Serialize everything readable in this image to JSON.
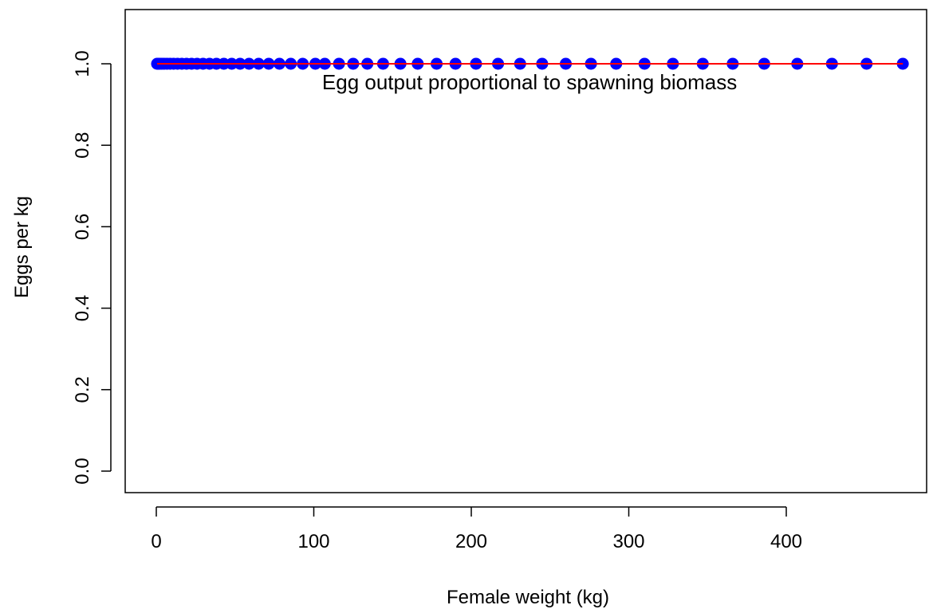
{
  "chart_data": {
    "type": "scatter",
    "title": "",
    "xlabel": "Female weight (kg)",
    "ylabel": "Eggs per kg",
    "xlim": [
      0,
      475
    ],
    "ylim": [
      0,
      1.0
    ],
    "x_ticks": [
      0,
      100,
      200,
      300,
      400
    ],
    "y_ticks": [
      0.0,
      0.2,
      0.4,
      0.6,
      0.8,
      1.0
    ],
    "x_tick_labels": [
      "0",
      "100",
      "200",
      "300",
      "400"
    ],
    "y_tick_labels": [
      "0.0",
      "0.2",
      "0.4",
      "0.6",
      "0.8",
      "1.0"
    ],
    "grid": false,
    "annotation": {
      "text": "Egg output proportional to spawning biomass",
      "x": 237,
      "y": 0.955
    },
    "series": [
      {
        "type": "scatter",
        "color": "#0000ff",
        "x": [
          0.5,
          1.2,
          2.2,
          3.5,
          5,
          6.8,
          8.8,
          11,
          13.5,
          16.2,
          19.2,
          22.4,
          25.9,
          29.7,
          33.8,
          38.2,
          42.9,
          47.9,
          53.2,
          58.9,
          65,
          71.4,
          78.2,
          85.4,
          93,
          101,
          107,
          116,
          125,
          134,
          144,
          155,
          166,
          178,
          190,
          203,
          217,
          231,
          245,
          260,
          276,
          292,
          310,
          328,
          347,
          366,
          386,
          407,
          429,
          451,
          474
        ],
        "y": [
          1,
          1,
          1,
          1,
          1,
          1,
          1,
          1,
          1,
          1,
          1,
          1,
          1,
          1,
          1,
          1,
          1,
          1,
          1,
          1,
          1,
          1,
          1,
          1,
          1,
          1,
          1,
          1,
          1,
          1,
          1,
          1,
          1,
          1,
          1,
          1,
          1,
          1,
          1,
          1,
          1,
          1,
          1,
          1,
          1,
          1,
          1,
          1,
          1,
          1,
          1
        ]
      },
      {
        "type": "line",
        "color": "#ff0000",
        "x": [
          0.5,
          474
        ],
        "y": [
          1,
          1
        ]
      }
    ]
  }
}
